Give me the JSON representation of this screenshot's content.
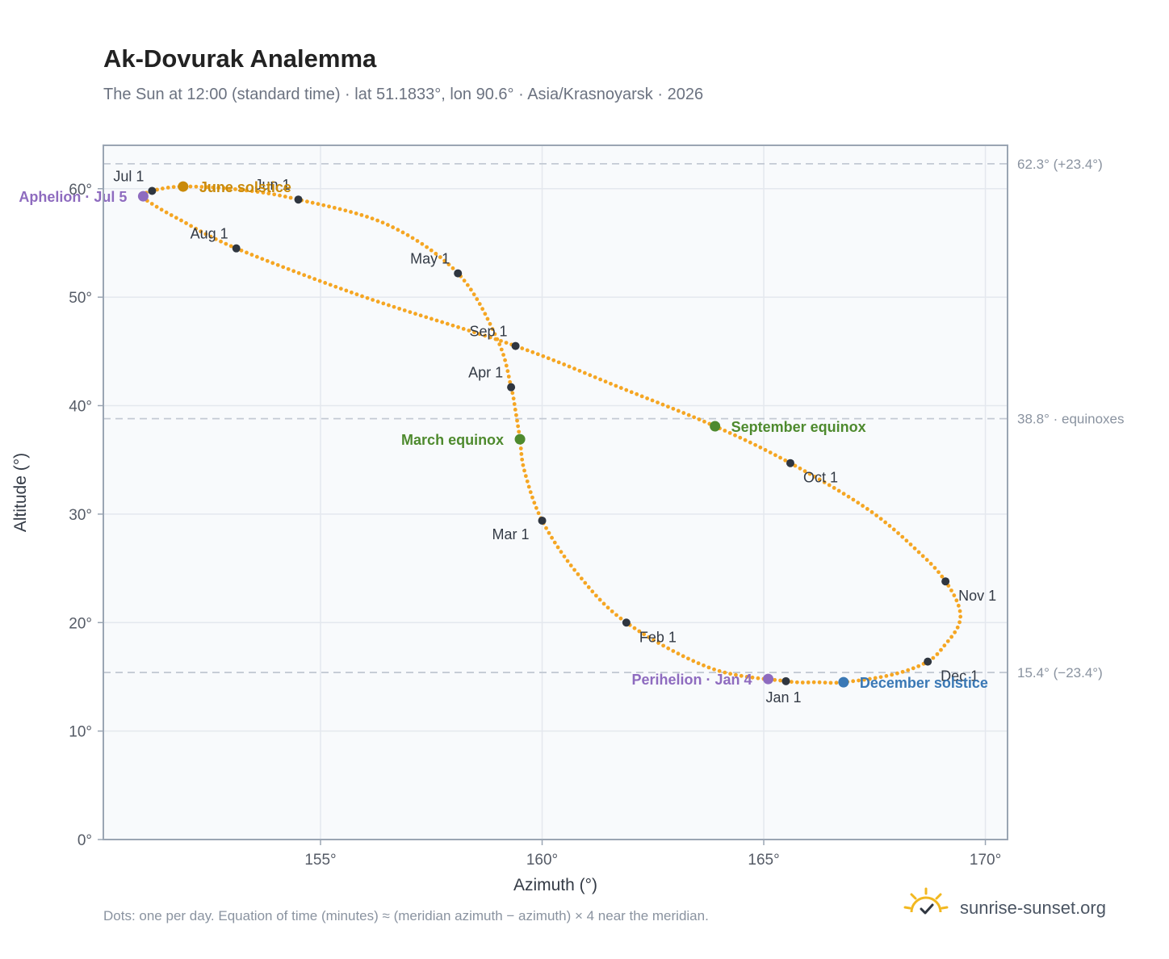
{
  "header": {
    "title": "Ak-Dovurak Analemma",
    "subtitle": "The Sun at 12:00 (standard time) · lat 51.1833°, lon 90.6° · Asia/Krasnoyarsk · 2026"
  },
  "footer": {
    "note": "Dots: one per day. Equation of time (minutes) ≈ (meridian azimuth − azimuth) × 4 near the meridian.",
    "brand": "sunrise-sunset.org",
    "brand_icon": "sun-logo-icon"
  },
  "colors": {
    "curve": "#f5a623",
    "month_dot": "#2f3640",
    "aphelion": "#8e6bbf",
    "june_solstice": "#c98a0a",
    "equinox": "#4e8a2e",
    "december_solstice": "#3a78b5",
    "reference_line": "#c3cad4",
    "plot_background": "#f8fafc",
    "plot_border": "#9aa5b3"
  },
  "chart_data": {
    "type": "scatter",
    "xlabel": "Azimuth (°)",
    "ylabel": "Altitude (°)",
    "xlim": [
      150.1,
      170.5
    ],
    "ylim": [
      0,
      64
    ],
    "x_ticks": [
      155,
      160,
      165,
      170
    ],
    "x_tick_labels": [
      "155°",
      "160°",
      "165°",
      "170°"
    ],
    "y_ticks": [
      0,
      10,
      20,
      30,
      40,
      50,
      60
    ],
    "y_tick_labels": [
      "0°",
      "10°",
      "20°",
      "30°",
      "40°",
      "50°",
      "60°"
    ],
    "grid": true,
    "reference_lines": [
      {
        "y": 62.3,
        "label": "62.3° (+23.4°)"
      },
      {
        "y": 38.8,
        "label": "38.8° · equinoxes"
      },
      {
        "y": 15.4,
        "label": "15.4° (−23.4°)"
      }
    ],
    "series": [
      {
        "marker": "daily dots",
        "points_per_day": 1,
        "path": [
          [
            165.5,
            14.6
          ],
          [
            163.8,
            15.8
          ],
          [
            161.9,
            20.0
          ],
          [
            160.8,
            24.5
          ],
          [
            160.0,
            29.4
          ],
          [
            159.6,
            34.0
          ],
          [
            159.5,
            36.9
          ],
          [
            159.4,
            39.5
          ],
          [
            159.3,
            41.7
          ],
          [
            159.0,
            46.0
          ],
          [
            158.1,
            52.2
          ],
          [
            156.5,
            56.7
          ],
          [
            154.5,
            59.0
          ],
          [
            153.2,
            59.9
          ],
          [
            151.9,
            60.2
          ],
          [
            151.2,
            59.8
          ],
          [
            151.0,
            59.3
          ],
          [
            151.2,
            58.6
          ],
          [
            151.8,
            57.2
          ],
          [
            153.1,
            54.5
          ],
          [
            156.0,
            50.0
          ],
          [
            159.4,
            45.5
          ],
          [
            161.8,
            41.6
          ],
          [
            163.9,
            38.1
          ],
          [
            165.6,
            34.7
          ],
          [
            167.4,
            30.3
          ],
          [
            168.6,
            26.1
          ],
          [
            169.1,
            23.8
          ],
          [
            169.4,
            21.5
          ],
          [
            169.4,
            19.8
          ],
          [
            169.1,
            18.0
          ],
          [
            168.7,
            16.4
          ],
          [
            167.9,
            15.2
          ],
          [
            166.8,
            14.5
          ],
          [
            166.2,
            14.5
          ],
          [
            165.5,
            14.6
          ]
        ]
      }
    ],
    "month_markers": [
      {
        "label": "Jan 1",
        "x": 165.5,
        "y": 14.6,
        "anchor": "below"
      },
      {
        "label": "Feb 1",
        "x": 161.9,
        "y": 20.0,
        "anchor": "below-right"
      },
      {
        "label": "Mar 1",
        "x": 160.0,
        "y": 29.4,
        "anchor": "below-left"
      },
      {
        "label": "Apr 1",
        "x": 159.3,
        "y": 41.7,
        "anchor": "above-left"
      },
      {
        "label": "May 1",
        "x": 158.1,
        "y": 52.2,
        "anchor": "above-left"
      },
      {
        "label": "Jun 1",
        "x": 154.5,
        "y": 59.0,
        "anchor": "above-left"
      },
      {
        "label": "Jul 1",
        "x": 151.2,
        "y": 59.8,
        "anchor": "above-left"
      },
      {
        "label": "Aug 1",
        "x": 153.1,
        "y": 54.5,
        "anchor": "above-left"
      },
      {
        "label": "Sep 1",
        "x": 159.4,
        "y": 45.5,
        "anchor": "above-left"
      },
      {
        "label": "Oct 1",
        "x": 165.6,
        "y": 34.7,
        "anchor": "below-right"
      },
      {
        "label": "Nov 1",
        "x": 169.1,
        "y": 23.8,
        "anchor": "below-right"
      },
      {
        "label": "Dec 1",
        "x": 168.7,
        "y": 16.4,
        "anchor": "below-right"
      }
    ],
    "events": [
      {
        "label": "Aphelion · Jul 5",
        "x": 151.0,
        "y": 59.3,
        "color_key": "aphelion",
        "anchor": "left"
      },
      {
        "label": "June solstice",
        "x": 151.9,
        "y": 60.2,
        "color_key": "june_solstice",
        "anchor": "right"
      },
      {
        "label": "March equinox",
        "x": 159.5,
        "y": 36.9,
        "color_key": "equinox",
        "anchor": "left"
      },
      {
        "label": "September equinox",
        "x": 163.9,
        "y": 38.1,
        "color_key": "equinox",
        "anchor": "right"
      },
      {
        "label": "Perihelion · Jan 4",
        "x": 165.1,
        "y": 14.8,
        "color_key": "aphelion",
        "anchor": "left"
      },
      {
        "label": "December solstice",
        "x": 166.8,
        "y": 14.5,
        "color_key": "december_solstice",
        "anchor": "right"
      }
    ]
  }
}
